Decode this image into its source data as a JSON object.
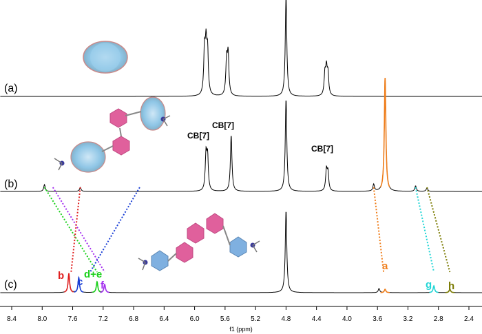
{
  "chart_data": {
    "type": "line",
    "xlabel": "f1 (ppm)",
    "x_ticks": [
      8.4,
      8.0,
      7.6,
      7.2,
      6.8,
      6.4,
      6.0,
      5.6,
      5.2,
      4.8,
      4.4,
      4.0,
      3.6,
      3.2,
      2.8,
      2.4
    ],
    "xlim": [
      8.52,
      2.22
    ],
    "x_reversed": true,
    "spectra": [
      {
        "label": "(a)",
        "peaks": [
          {
            "ppm": 5.87,
            "height": 0.62
          },
          {
            "ppm": 5.85,
            "height": 0.66
          },
          {
            "ppm": 5.83,
            "height": 0.6
          },
          {
            "ppm": 5.58,
            "height": 0.5
          },
          {
            "ppm": 5.56,
            "height": 0.58
          },
          {
            "ppm": 4.8,
            "height": 1.45
          },
          {
            "ppm": 4.29,
            "height": 0.3
          },
          {
            "ppm": 4.27,
            "height": 0.36
          },
          {
            "ppm": 4.25,
            "height": 0.3
          }
        ],
        "annotations": []
      },
      {
        "label": "(b)",
        "peaks": [
          {
            "ppm": 7.97,
            "height": 0.1
          },
          {
            "ppm": 7.5,
            "height": 0.06
          },
          {
            "ppm": 5.85,
            "height": 0.52
          },
          {
            "ppm": 5.83,
            "height": 0.48
          },
          {
            "ppm": 5.52,
            "height": 0.82
          },
          {
            "ppm": 4.8,
            "height": 1.35
          },
          {
            "ppm": 4.27,
            "height": 0.3
          },
          {
            "ppm": 4.25,
            "height": 0.26
          },
          {
            "ppm": 3.65,
            "height": 0.1
          },
          {
            "ppm": 3.5,
            "height": 1.65
          },
          {
            "ppm": 3.1,
            "height": 0.08
          },
          {
            "ppm": 2.95,
            "height": 0.05
          }
        ],
        "annotations": [
          {
            "text": "CB[7]",
            "ppm": 5.85
          },
          {
            "text": "CB[7]",
            "ppm": 5.53
          },
          {
            "text": "CB[7]",
            "ppm": 4.27
          }
        ]
      },
      {
        "label": "(c)",
        "peaks": [
          {
            "ppm": 7.65,
            "height": 0.28
          },
          {
            "ppm": 7.52,
            "height": 0.22
          },
          {
            "ppm": 7.28,
            "height": 0.16
          },
          {
            "ppm": 7.18,
            "height": 0.12
          },
          {
            "ppm": 4.8,
            "height": 1.2
          },
          {
            "ppm": 3.58,
            "height": 0.06
          },
          {
            "ppm": 3.5,
            "height": 0.05
          },
          {
            "ppm": 2.86,
            "height": 0.1
          },
          {
            "ppm": 2.65,
            "height": 0.05
          }
        ],
        "annotations": [
          {
            "text": "b",
            "ppm": 7.65,
            "color": "#e02020"
          },
          {
            "text": "c",
            "ppm": 7.52,
            "color": "#1a3fd6"
          },
          {
            "text": "d+e",
            "ppm": 7.28,
            "color": "#1bd11b"
          },
          {
            "text": "f",
            "ppm": 7.18,
            "color": "#a32cf0"
          },
          {
            "text": "a",
            "ppm": 3.5,
            "color": "#ef7d1a"
          },
          {
            "text": "g",
            "ppm": 2.86,
            "color": "#22d6d6"
          },
          {
            "text": "h",
            "ppm": 2.65,
            "color": "#7a7a00"
          }
        ]
      }
    ],
    "correlations": [
      {
        "from_ppm": 7.97,
        "to_ppm": 7.28,
        "color": "#1bd11b"
      },
      {
        "from_ppm": 7.86,
        "to_ppm": 7.18,
        "color": "#a32cf0"
      },
      {
        "from_ppm": 7.5,
        "to_ppm": 7.62,
        "color": "#e02020"
      },
      {
        "from_ppm": 6.72,
        "to_ppm": 7.37,
        "color": "#1a3fd6"
      },
      {
        "from_ppm": 3.65,
        "to_ppm": 3.52,
        "color": "#ef7d1a"
      },
      {
        "from_ppm": 3.1,
        "to_ppm": 2.86,
        "color": "#22d6d6"
      },
      {
        "from_ppm": 2.95,
        "to_ppm": 2.65,
        "color": "#7a7a00"
      }
    ],
    "colors": {
      "pink": "#e0609c",
      "blue": "#7fb0e0",
      "cb7": "#8fc6e6",
      "red": "#e02020",
      "orange": "#ef7d1a",
      "green": "#1bd11b",
      "purple": "#a32cf0",
      "darkblue": "#1a3fd6",
      "cyan": "#22d6d6",
      "olive": "#7a7a00"
    }
  }
}
